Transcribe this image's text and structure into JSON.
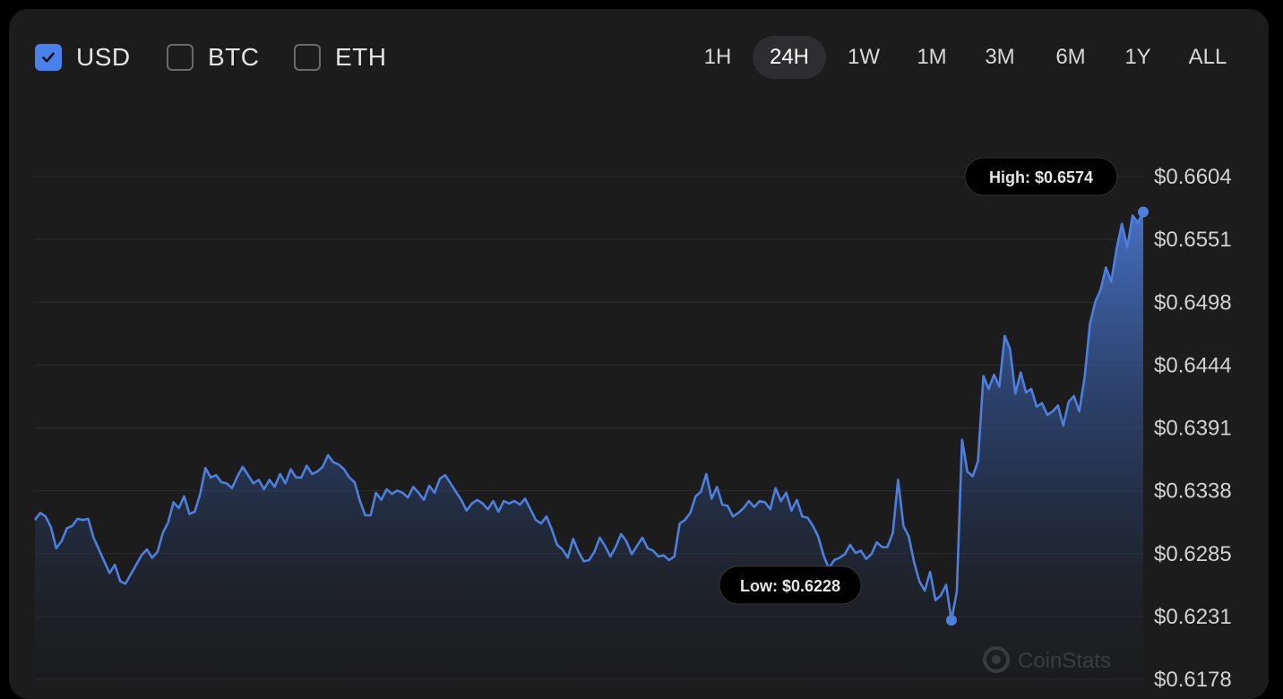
{
  "currencies": [
    {
      "label": "USD",
      "checked": true
    },
    {
      "label": "BTC",
      "checked": false
    },
    {
      "label": "ETH",
      "checked": false
    }
  ],
  "ranges": [
    {
      "label": "1H",
      "active": false
    },
    {
      "label": "24H",
      "active": true
    },
    {
      "label": "1W",
      "active": false
    },
    {
      "label": "1M",
      "active": false
    },
    {
      "label": "3M",
      "active": false
    },
    {
      "label": "6M",
      "active": false
    },
    {
      "label": "1Y",
      "active": false
    },
    {
      "label": "ALL",
      "active": false
    }
  ],
  "watermark": "CoinStats",
  "colors": {
    "accent": "#4a80ea",
    "line": "#4f7fdc",
    "background": "#1c1c1d"
  },
  "chart_data": {
    "type": "area",
    "title": "",
    "xlabel": "",
    "ylabel": "",
    "y_tick_labels": [
      "$0.6604",
      "$0.6551",
      "$0.6498",
      "$0.6444",
      "$0.6391",
      "$0.6338",
      "$0.6285",
      "$0.6231",
      "$0.6178"
    ],
    "ylim": [
      0.6178,
      0.6604
    ],
    "high": {
      "label": "High: $0.6574",
      "value": 0.6574
    },
    "low": {
      "label": "Low: $0.6228",
      "value": 0.6228
    },
    "grid": true,
    "values": [
      0.6313,
      0.6319,
      0.6316,
      0.6307,
      0.6289,
      0.6295,
      0.6306,
      0.6308,
      0.6314,
      0.6313,
      0.6314,
      0.6298,
      0.6288,
      0.6278,
      0.6268,
      0.6275,
      0.6261,
      0.6259,
      0.6267,
      0.6275,
      0.6283,
      0.6288,
      0.6281,
      0.6286,
      0.6302,
      0.6311,
      0.6328,
      0.6323,
      0.6333,
      0.6318,
      0.632,
      0.6335,
      0.6357,
      0.6349,
      0.6351,
      0.6345,
      0.6344,
      0.634,
      0.635,
      0.6358,
      0.6351,
      0.6344,
      0.6347,
      0.6339,
      0.6347,
      0.6341,
      0.6352,
      0.6344,
      0.6356,
      0.6349,
      0.6349,
      0.6359,
      0.6352,
      0.6354,
      0.6358,
      0.6368,
      0.6362,
      0.636,
      0.6356,
      0.6349,
      0.6345,
      0.6329,
      0.6317,
      0.6317,
      0.6336,
      0.633,
      0.6339,
      0.6335,
      0.6338,
      0.6336,
      0.6332,
      0.6341,
      0.6336,
      0.633,
      0.6342,
      0.6336,
      0.6348,
      0.6351,
      0.6344,
      0.6337,
      0.633,
      0.6321,
      0.6327,
      0.633,
      0.6327,
      0.6322,
      0.6329,
      0.632,
      0.6329,
      0.6327,
      0.6329,
      0.6326,
      0.6331,
      0.6322,
      0.6313,
      0.631,
      0.6316,
      0.6305,
      0.6292,
      0.6288,
      0.6281,
      0.6297,
      0.6286,
      0.6278,
      0.6279,
      0.6286,
      0.6298,
      0.6291,
      0.6282,
      0.629,
      0.6301,
      0.6295,
      0.6284,
      0.6291,
      0.6298,
      0.6289,
      0.6287,
      0.6282,
      0.6283,
      0.6279,
      0.6282,
      0.631,
      0.6313,
      0.6319,
      0.6333,
      0.6337,
      0.6352,
      0.6331,
      0.6341,
      0.6326,
      0.6325,
      0.6316,
      0.6319,
      0.6323,
      0.6329,
      0.6324,
      0.6329,
      0.6328,
      0.6322,
      0.634,
      0.6329,
      0.6336,
      0.6321,
      0.633,
      0.6316,
      0.6315,
      0.6308,
      0.6299,
      0.6283,
      0.6272,
      0.6279,
      0.6281,
      0.6284,
      0.6292,
      0.6285,
      0.6287,
      0.628,
      0.6284,
      0.6294,
      0.629,
      0.629,
      0.6302,
      0.6347,
      0.6308,
      0.6299,
      0.6277,
      0.6261,
      0.6253,
      0.6269,
      0.6245,
      0.6249,
      0.6258,
      0.6228,
      0.6252,
      0.6381,
      0.6354,
      0.635,
      0.6363,
      0.6435,
      0.6424,
      0.6436,
      0.6426,
      0.6469,
      0.6458,
      0.642,
      0.6438,
      0.6421,
      0.6424,
      0.6409,
      0.6412,
      0.6402,
      0.6405,
      0.641,
      0.6393,
      0.6413,
      0.6418,
      0.6405,
      0.6434,
      0.6479,
      0.6498,
      0.6508,
      0.6527,
      0.6515,
      0.6543,
      0.6564,
      0.6544,
      0.6571,
      0.6565,
      0.6574
    ]
  }
}
